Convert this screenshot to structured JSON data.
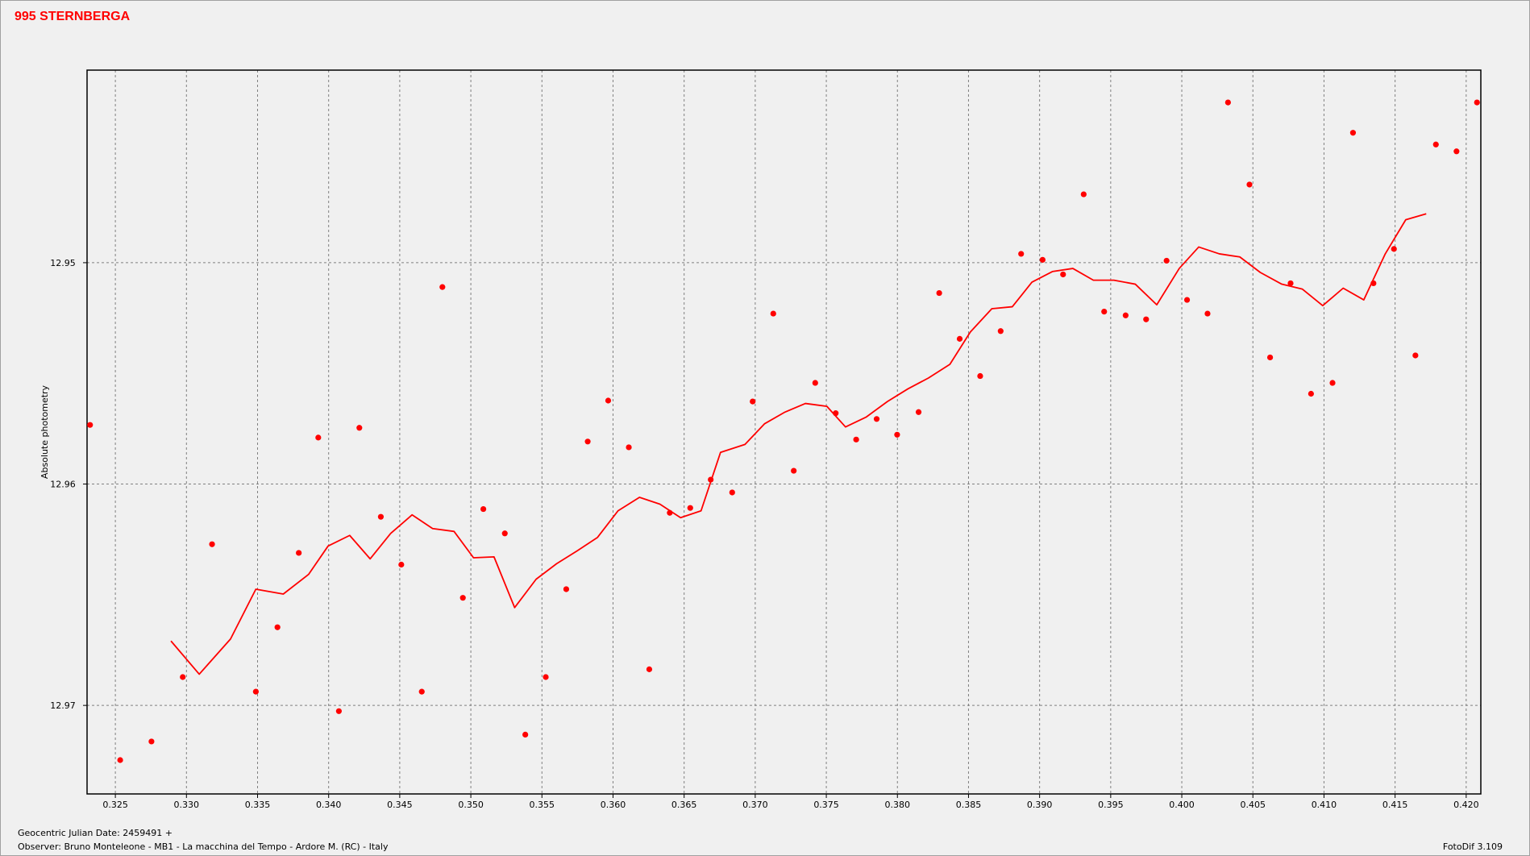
{
  "chart_data": {
    "type": "scatter",
    "title": "995 STERNBERGA",
    "y_label": "Absolute photometry",
    "footer_date": "Geocentric Julian Date: 2459491 +",
    "footer_observer": "Observer: Bruno Monteleone - MB1 - La macchina del Tempo - Ardore M. (RC) - Italy",
    "footer_software": "FotoDif 3.109",
    "xlim": [
      0.32301,
      0.42103
    ],
    "ylim": [
      12.9413,
      12.974
    ],
    "y_inverted": true,
    "grid": true,
    "xticks": [
      0.325,
      {
        "value": 0.33,
        "label": "0.330"
      },
      0.335,
      {
        "value": 0.34,
        "label": "0.340"
      },
      0.345,
      {
        "value": 0.35,
        "label": "0.350"
      },
      0.355,
      {
        "value": 0.36,
        "label": "0.360"
      },
      0.365,
      {
        "value": 0.37,
        "label": "0.370"
      },
      0.375,
      {
        "value": 0.38,
        "label": "0.380"
      },
      0.385,
      {
        "value": 0.39,
        "label": "0.390"
      },
      0.395,
      {
        "value": 0.4,
        "label": "0.400"
      },
      0.405,
      {
        "value": 0.41,
        "label": "0.410"
      },
      0.415,
      {
        "value": 0.42,
        "label": "0.420"
      }
    ],
    "yticks": [
      12.95,
      12.96,
      12.97
    ],
    "series": [
      {
        "type": "scatter",
        "color": "#ff0000",
        "x": [
          0.32322,
          0.32534,
          0.32754,
          0.32974,
          0.3318,
          0.33488,
          0.3364,
          0.3379,
          0.33927,
          0.34072,
          0.34216,
          0.34367,
          0.34511,
          0.34655,
          0.348,
          0.34944,
          0.35088,
          0.35239,
          0.35383,
          0.35527,
          0.35671,
          0.35822,
          0.35966,
          0.36111,
          0.36255,
          0.36399,
          0.36543,
          0.36687,
          0.36838,
          0.36982,
          0.37127,
          0.37271,
          0.37422,
          0.37566,
          0.3771,
          0.37854,
          0.37998,
          0.38149,
          0.38294,
          0.38438,
          0.38582,
          0.38726,
          0.3887,
          0.39021,
          0.39165,
          0.3931,
          0.39454,
          0.39605,
          0.39749,
          0.39893,
          0.40037,
          0.40181,
          0.40325,
          0.40476,
          0.40621,
          0.40765,
          0.40909,
          0.4106,
          0.41204,
          0.41348,
          0.41492,
          0.41643,
          0.41787,
          0.41932,
          0.42076
        ],
        "values": [
          12.95733,
          12.97247,
          12.97163,
          12.96872,
          12.96272,
          12.96938,
          12.96647,
          12.96311,
          12.9579,
          12.97026,
          12.95746,
          12.96148,
          12.96364,
          12.96938,
          12.9511,
          12.96514,
          12.96113,
          12.96223,
          12.97132,
          12.96872,
          12.96475,
          12.95808,
          12.95623,
          12.95834,
          12.96837,
          12.9613,
          12.96108,
          12.9598,
          12.96038,
          12.95627,
          12.9523,
          12.9594,
          12.95543,
          12.9568,
          12.95799,
          12.95706,
          12.95777,
          12.95675,
          12.95137,
          12.95344,
          12.95512,
          12.95309,
          12.9496,
          12.94987,
          12.95053,
          12.94691,
          12.95221,
          12.95238,
          12.95256,
          12.94991,
          12.95168,
          12.9523,
          12.94276,
          12.94647,
          12.95428,
          12.95093,
          12.95592,
          12.95543,
          12.94413,
          12.95093,
          12.94938,
          12.95419,
          12.94466,
          12.94497,
          12.94276
        ]
      },
      {
        "type": "line",
        "color": "#ff0000",
        "x": [
          0.32891,
          0.3309,
          0.3331,
          0.33488,
          0.33681,
          0.33859,
          0.33996,
          0.34148,
          0.34292,
          0.34436,
          0.34587,
          0.34731,
          0.34882,
          0.35019,
          0.35163,
          0.35308,
          0.35459,
          0.35603,
          0.35747,
          0.35891,
          0.36035,
          0.36186,
          0.3633,
          0.36475,
          0.36619,
          0.36756,
          0.36928,
          0.37065,
          0.37209,
          0.37353,
          0.37504,
          0.37635,
          0.37779,
          0.3793,
          0.38074,
          0.38218,
          0.38369,
          0.38513,
          0.38664,
          0.38808,
          0.38946,
          0.3909,
          0.39234,
          0.39378,
          0.39522,
          0.39673,
          0.39824,
          0.39982,
          0.40119,
          0.40264,
          0.40408,
          0.40552,
          0.40703,
          0.40847,
          0.40991,
          0.41135,
          0.4128,
          0.41431,
          0.41575,
          0.41719
        ],
        "values": [
          12.96709,
          12.96859,
          12.967,
          12.96475,
          12.96497,
          12.96408,
          12.9628,
          12.96232,
          12.96338,
          12.96223,
          12.96139,
          12.96201,
          12.96214,
          12.96333,
          12.96329,
          12.96558,
          12.9643,
          12.9636,
          12.96302,
          12.96241,
          12.96121,
          12.9606,
          12.96091,
          12.96152,
          12.96121,
          12.95857,
          12.95821,
          12.95728,
          12.95675,
          12.95636,
          12.95649,
          12.95742,
          12.95698,
          12.95627,
          12.9557,
          12.95521,
          12.95459,
          12.95313,
          12.95208,
          12.95199,
          12.95088,
          12.9504,
          12.95026,
          12.95079,
          12.95079,
          12.95097,
          12.9519,
          12.95026,
          12.94929,
          12.9496,
          12.94974,
          12.95044,
          12.95097,
          12.95119,
          12.95194,
          12.95115,
          12.95168,
          12.9496,
          12.94806,
          12.94779
        ]
      }
    ]
  }
}
